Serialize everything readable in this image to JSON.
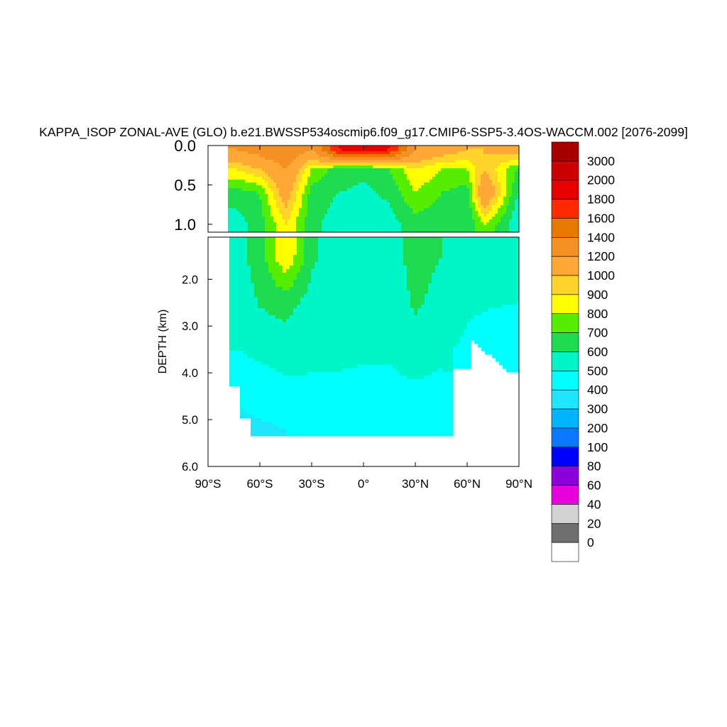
{
  "chart_data": {
    "type": "heatmap",
    "title": "KAPPA_ISOP ZONAL-AVE (GLO) b.e21.BWSSP534oscmip6.f09_g17.CMIP6-SSP5-3.4OS-WACCM.002 [2076-2099]",
    "ylabel": "DEPTH (km)",
    "xlabel": "",
    "x_ticks": [
      "90°S",
      "60°S",
      "30°S",
      "0°",
      "30°N",
      "60°N",
      "90°N"
    ],
    "x_tick_values": [
      -90,
      -60,
      -30,
      0,
      30,
      60,
      90
    ],
    "upper_panel": {
      "ylim": [
        0.0,
        1.1
      ],
      "y_ticks": [
        "0.0",
        "0.5",
        "1.0"
      ],
      "y_tick_values": [
        0.0,
        0.5,
        1.0
      ]
    },
    "lower_panel": {
      "ylim": [
        1.1,
        6.0
      ],
      "y_ticks": [
        "2.0",
        "3.0",
        "4.0",
        "5.0",
        "6.0"
      ],
      "y_tick_values": [
        2.0,
        3.0,
        4.0,
        5.0,
        6.0
      ]
    },
    "colorbar": {
      "labels": [
        "3000",
        "2000",
        "1800",
        "1600",
        "1400",
        "1200",
        "1000",
        "900",
        "800",
        "700",
        "600",
        "500",
        "400",
        "300",
        "200",
        "100",
        "80",
        "60",
        "40",
        "20",
        "0"
      ],
      "colors": [
        "#a80000",
        "#cc0000",
        "#e80000",
        "#ff2a00",
        "#e87800",
        "#f59024",
        "#ffa838",
        "#ffd42a",
        "#ffff00",
        "#55ee00",
        "#1edc50",
        "#00f5c8",
        "#00ffff",
        "#1ee6ff",
        "#00b4ff",
        "#0a78ff",
        "#0000ff",
        "#8c00dc",
        "#e600dc",
        "#d2d2d2",
        "#6e6e6e",
        "#ffffff"
      ]
    },
    "field_upper": {
      "lat": [
        -74,
        -60,
        -45,
        -30,
        -15,
        0,
        15,
        30,
        45,
        60,
        70,
        89
      ],
      "depth": [
        0.05,
        0.3,
        0.6,
        1.0
      ],
      "values": [
        [
          1200,
          1300,
          1400,
          1200,
          1800,
          2000,
          1800,
          1200,
          1100,
          1000,
          1000,
          1100
        ],
        [
          900,
          1000,
          1200,
          800,
          650,
          620,
          700,
          900,
          800,
          800,
          1000,
          700
        ],
        [
          650,
          700,
          1100,
          650,
          600,
          580,
          620,
          800,
          700,
          650,
          1200,
          600
        ],
        [
          550,
          650,
          900,
          620,
          560,
          540,
          560,
          650,
          620,
          600,
          800,
          520
        ]
      ]
    },
    "field_lower": {
      "lat": [
        -74,
        -60,
        -45,
        -30,
        -15,
        0,
        15,
        30,
        45,
        60,
        70,
        89
      ],
      "depth": [
        1.5,
        2.5,
        3.5,
        4.5,
        5.2
      ],
      "values": [
        [
          560,
          650,
          900,
          620,
          540,
          530,
          550,
          640,
          600,
          580,
          560,
          520
        ],
        [
          520,
          610,
          640,
          560,
          520,
          520,
          520,
          620,
          560,
          520,
          510,
          500
        ],
        [
          500,
          520,
          540,
          520,
          510,
          510,
          510,
          540,
          520,
          480,
          450,
          450
        ],
        [
          420,
          450,
          470,
          480,
          490,
          480,
          480,
          480,
          470,
          null,
          null,
          null
        ],
        [
          350,
          380,
          400,
          420,
          420,
          430,
          420,
          420,
          400,
          null,
          null,
          null
        ]
      ]
    },
    "grid": false,
    "legend_placement": "right"
  }
}
